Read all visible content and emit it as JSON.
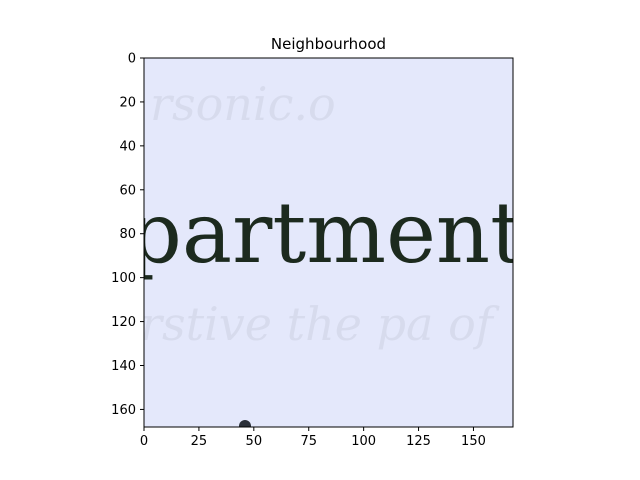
{
  "chart_data": {
    "type": "image",
    "title": "Neighbourhood",
    "xlabel": "",
    "ylabel": "",
    "image_extent": {
      "x": [
        0,
        168
      ],
      "y": [
        168,
        0
      ]
    },
    "image_size": {
      "width": 168,
      "height": 168
    },
    "xticks": [
      0,
      25,
      50,
      75,
      100,
      125,
      150
    ],
    "yticks": [
      0,
      20,
      40,
      60,
      80,
      100,
      120,
      140,
      160
    ],
    "xtick_labels": [
      "0",
      "25",
      "50",
      "75",
      "100",
      "125",
      "150"
    ],
    "ytick_labels": [
      "0",
      "20",
      "40",
      "60",
      "80",
      "100",
      "120",
      "140",
      "160"
    ],
    "image_content": {
      "text": "partment",
      "background_color": "#e4e8fb",
      "text_color": "#1c2a1e",
      "faint_bleed_text": [
        "rsonic.o",
        "rstive the pa of"
      ]
    }
  }
}
